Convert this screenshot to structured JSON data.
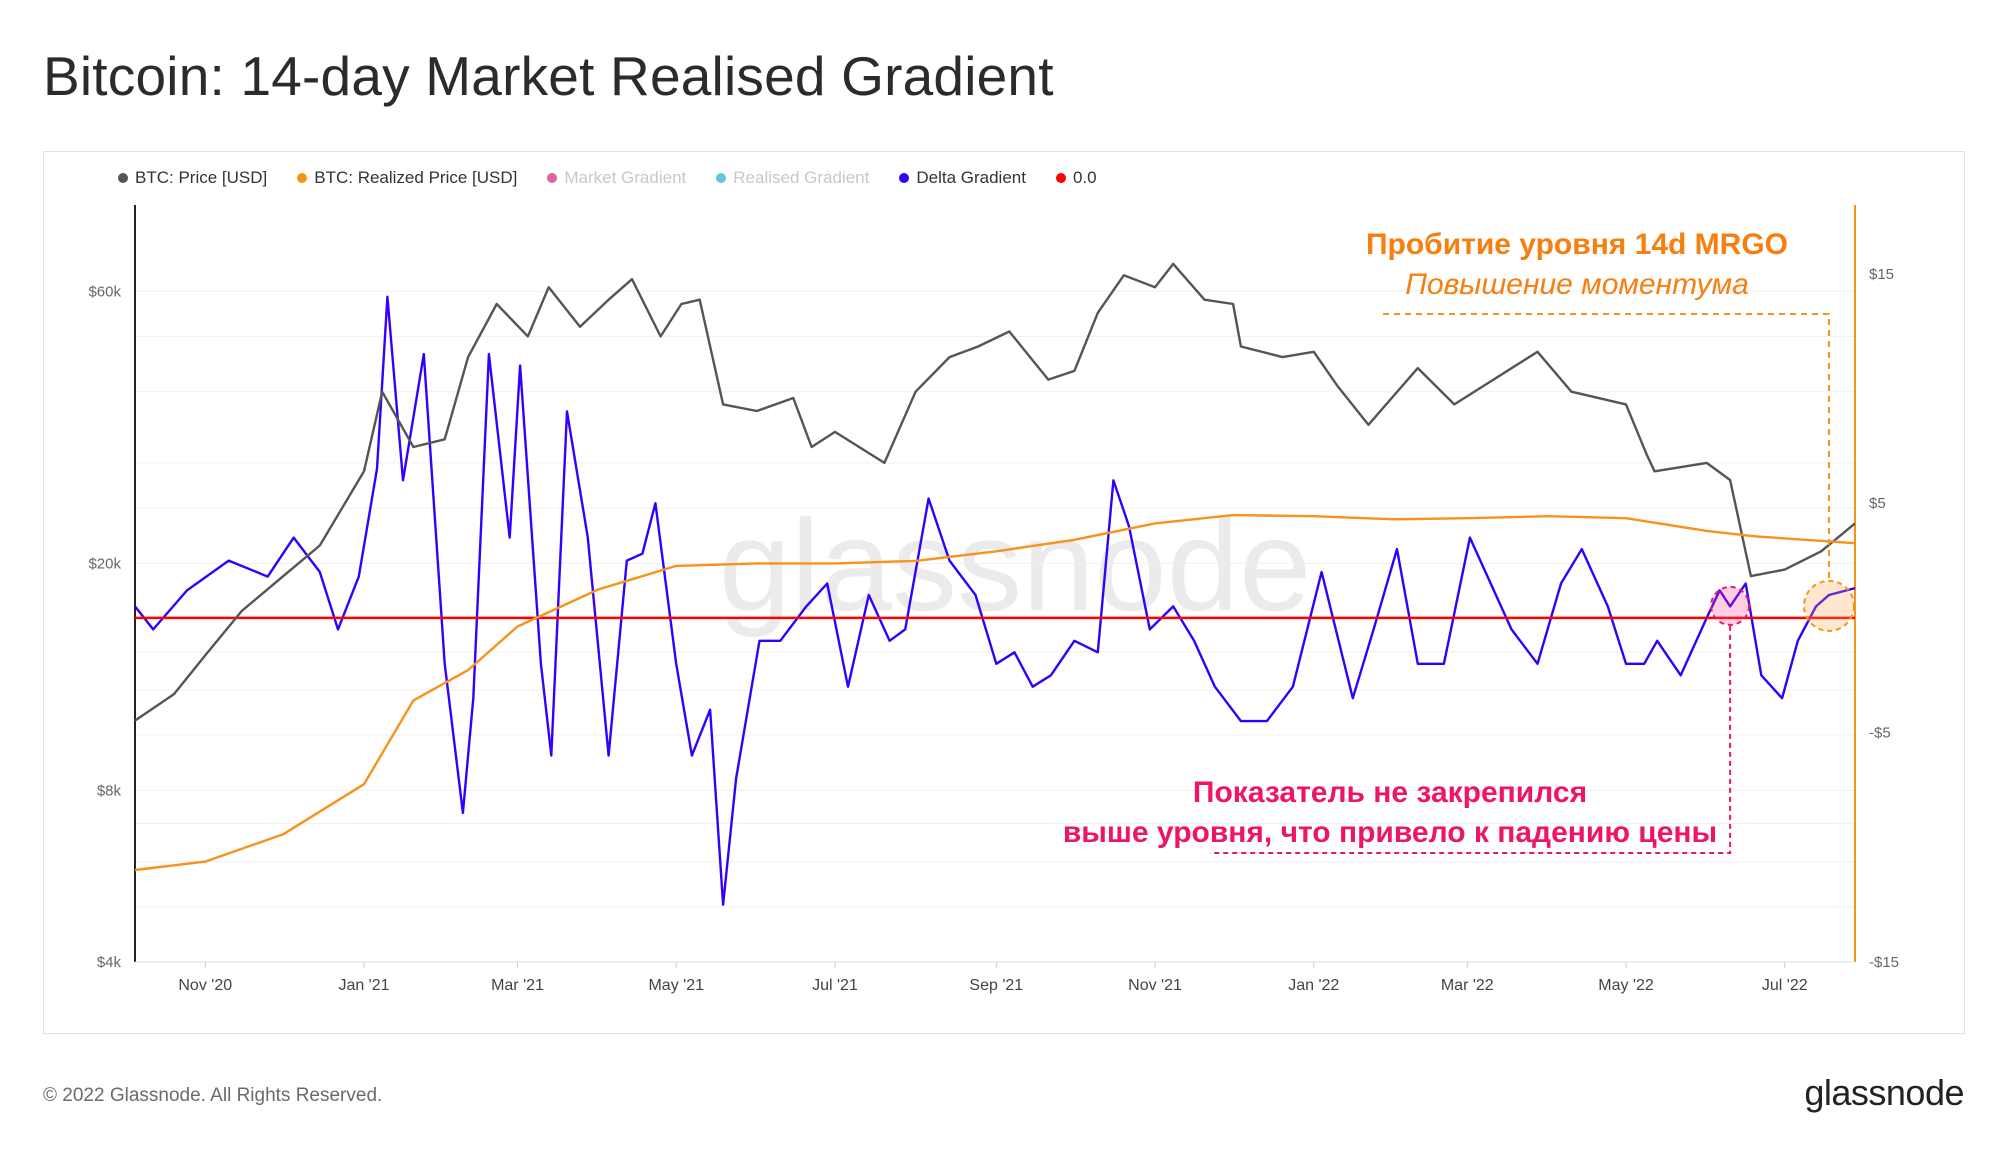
{
  "title": "Bitcoin: 14-day Market Realised Gradient",
  "legend": [
    {
      "label": "BTC: Price [USD]",
      "color": "#555555",
      "dim": false
    },
    {
      "label": "BTC: Realized Price [USD]",
      "color": "#f7931a",
      "dim": false
    },
    {
      "label": "Market Gradient",
      "color": "#e060a0",
      "dim": true
    },
    {
      "label": "Realised Gradient",
      "color": "#60c8d8",
      "dim": true
    },
    {
      "label": "Delta Gradient",
      "color": "#3300ff",
      "dim": false
    },
    {
      "label": "0.0",
      "color": "#ff0000",
      "dim": false
    }
  ],
  "footer": {
    "copyright": "© 2022 Glassnode. All Rights Reserved.",
    "logo": "glassnode"
  },
  "watermark": "glassnode",
  "annotations": {
    "orange_line1": "Пробитие уровня 14d MRGO",
    "orange_line2": "Повышение моментума",
    "pink_line1": "Показатель не закрепился",
    "pink_line2": "выше уровня, что привело к падению цены"
  },
  "chart_data": {
    "type": "line",
    "x_tick_labels": [
      "Nov '20",
      "Jan '21",
      "Mar '21",
      "May '21",
      "Jul '21",
      "Sep '21",
      "Nov '21",
      "Jan '22",
      "Mar '22",
      "May '22",
      "Jul '22"
    ],
    "x_tick_dates": [
      "2020-11-01",
      "2021-01-01",
      "2021-03-01",
      "2021-05-01",
      "2021-07-01",
      "2021-09-01",
      "2021-11-01",
      "2022-01-01",
      "2022-03-01",
      "2022-05-01",
      "2022-07-01"
    ],
    "x_range": [
      "2020-10-05",
      "2022-07-28"
    ],
    "y_left": {
      "scale": "log",
      "ticks": [
        "$4k",
        "$8k",
        "$20k",
        "$60k"
      ],
      "tick_values": [
        4000,
        8000,
        20000,
        60000
      ],
      "range": [
        4000,
        85000
      ]
    },
    "y_right": {
      "scale": "linear",
      "ticks": [
        "-$15",
        "-$5",
        "$5",
        "$15"
      ],
      "tick_values": [
        -15,
        -5,
        5,
        15
      ],
      "range": [
        -15,
        18
      ]
    },
    "grid": "horizontal",
    "series": [
      {
        "name": "BTC: Price [USD]",
        "axis": "left",
        "color": "#555555",
        "x": [
          "2020-10-05",
          "2020-10-20",
          "2020-11-01",
          "2020-11-15",
          "2020-12-01",
          "2020-12-15",
          "2021-01-01",
          "2021-01-08",
          "2021-01-20",
          "2021-02-01",
          "2021-02-10",
          "2021-02-21",
          "2021-03-05",
          "2021-03-13",
          "2021-03-25",
          "2021-04-05",
          "2021-04-14",
          "2021-04-25",
          "2021-05-03",
          "2021-05-10",
          "2021-05-19",
          "2021-06-01",
          "2021-06-15",
          "2021-06-22",
          "2021-07-01",
          "2021-07-20",
          "2021-08-01",
          "2021-08-14",
          "2021-08-25",
          "2021-09-06",
          "2021-09-21",
          "2021-10-01",
          "2021-10-10",
          "2021-10-20",
          "2021-11-01",
          "2021-11-08",
          "2021-11-20",
          "2021-12-01",
          "2021-12-04",
          "2021-12-20",
          "2022-01-01",
          "2022-01-10",
          "2022-01-22",
          "2022-02-10",
          "2022-02-24",
          "2022-03-28",
          "2022-04-10",
          "2022-05-01",
          "2022-05-09",
          "2022-05-12",
          "2022-06-01",
          "2022-06-10",
          "2022-06-18",
          "2022-07-01",
          "2022-07-15",
          "2022-07-28"
        ],
        "y": [
          10600,
          11800,
          13800,
          16500,
          19000,
          21500,
          29000,
          40000,
          32000,
          33000,
          46000,
          57000,
          50000,
          61000,
          52000,
          58000,
          63000,
          50000,
          57000,
          58000,
          38000,
          37000,
          39000,
          32000,
          34000,
          30000,
          40000,
          46000,
          48000,
          51000,
          42000,
          43500,
          55000,
          64000,
          61000,
          67000,
          58000,
          57000,
          48000,
          46000,
          47000,
          41000,
          35000,
          44000,
          38000,
          47000,
          40000,
          38000,
          31000,
          29000,
          30000,
          28000,
          19000,
          19500,
          21000,
          23500
        ]
      },
      {
        "name": "BTC: Realized Price [USD]",
        "axis": "left",
        "color": "#f7931a",
        "x": [
          "2020-10-05",
          "2020-11-01",
          "2020-12-01",
          "2021-01-01",
          "2021-01-20",
          "2021-02-10",
          "2021-03-01",
          "2021-04-01",
          "2021-05-01",
          "2021-06-01",
          "2021-07-01",
          "2021-08-01",
          "2021-09-01",
          "2021-10-01",
          "2021-11-01",
          "2021-12-01",
          "2022-01-01",
          "2022-02-01",
          "2022-03-01",
          "2022-04-01",
          "2022-05-01",
          "2022-06-01",
          "2022-06-20",
          "2022-07-28"
        ],
        "y": [
          5800,
          6000,
          6700,
          8200,
          11500,
          13000,
          15500,
          18000,
          19800,
          20000,
          20000,
          20200,
          21000,
          22000,
          23500,
          24300,
          24200,
          23900,
          24000,
          24200,
          24000,
          22800,
          22300,
          21700
        ]
      },
      {
        "name": "Delta Gradient",
        "axis": "right",
        "color": "#3300ff",
        "x": [
          "2020-10-05",
          "2020-10-12",
          "2020-10-25",
          "2020-11-10",
          "2020-11-25",
          "2020-12-05",
          "2020-12-15",
          "2020-12-22",
          "2020-12-30",
          "2021-01-06",
          "2021-01-10",
          "2021-01-16",
          "2021-01-24",
          "2021-02-01",
          "2021-02-08",
          "2021-02-12",
          "2021-02-18",
          "2021-02-26",
          "2021-03-02",
          "2021-03-10",
          "2021-03-14",
          "2021-03-20",
          "2021-03-28",
          "2021-04-05",
          "2021-04-12",
          "2021-04-18",
          "2021-04-23",
          "2021-05-01",
          "2021-05-07",
          "2021-05-14",
          "2021-05-19",
          "2021-05-24",
          "2021-06-02",
          "2021-06-10",
          "2021-06-20",
          "2021-06-28",
          "2021-07-06",
          "2021-07-14",
          "2021-07-22",
          "2021-07-28",
          "2021-08-06",
          "2021-08-14",
          "2021-08-24",
          "2021-09-01",
          "2021-09-08",
          "2021-09-15",
          "2021-09-22",
          "2021-10-01",
          "2021-10-10",
          "2021-10-16",
          "2021-10-22",
          "2021-10-30",
          "2021-11-08",
          "2021-11-16",
          "2021-11-24",
          "2021-12-04",
          "2021-12-14",
          "2021-12-24",
          "2022-01-04",
          "2022-01-16",
          "2022-01-24",
          "2022-02-02",
          "2022-02-10",
          "2022-02-20",
          "2022-03-02",
          "2022-03-10",
          "2022-03-18",
          "2022-03-28",
          "2022-04-06",
          "2022-04-14",
          "2022-04-24",
          "2022-05-01",
          "2022-05-08",
          "2022-05-13",
          "2022-05-22",
          "2022-06-01",
          "2022-06-06",
          "2022-06-10",
          "2022-06-16",
          "2022-06-22",
          "2022-06-30",
          "2022-07-06",
          "2022-07-13",
          "2022-07-18",
          "2022-07-28"
        ],
        "y": [
          0.5,
          -0.5,
          1.2,
          2.5,
          1.8,
          3.5,
          2.0,
          -0.5,
          1.8,
          6.5,
          14.0,
          6.0,
          11.5,
          -2.0,
          -8.5,
          -3.5,
          11.5,
          3.5,
          11.0,
          -2.0,
          -6.0,
          9.0,
          3.5,
          -6.0,
          2.5,
          2.8,
          5.0,
          -2.0,
          -6.0,
          -4.0,
          -12.5,
          -7.0,
          -1.0,
          -1.0,
          0.5,
          1.5,
          -3.0,
          1.0,
          -1.0,
          -0.5,
          5.2,
          2.5,
          1.0,
          -2.0,
          -1.5,
          -3.0,
          -2.5,
          -1.0,
          -1.5,
          6.0,
          4.0,
          -0.5,
          0.5,
          -1.0,
          -3.0,
          -4.5,
          -4.5,
          -3.0,
          2.0,
          -3.5,
          -0.5,
          3.0,
          -2.0,
          -2.0,
          3.5,
          1.5,
          -0.5,
          -2.0,
          1.5,
          3.0,
          0.5,
          -2.0,
          -2.0,
          -1.0,
          -2.5,
          0.0,
          1.2,
          0.5,
          1.5,
          -2.5,
          -3.5,
          -1.0,
          0.5,
          1.0,
          1.3
        ]
      },
      {
        "name": "0.0",
        "axis": "right",
        "color": "#ff0000",
        "x": [
          "2020-10-05",
          "2022-07-28"
        ],
        "y": [
          0.0,
          0.0
        ]
      }
    ]
  }
}
